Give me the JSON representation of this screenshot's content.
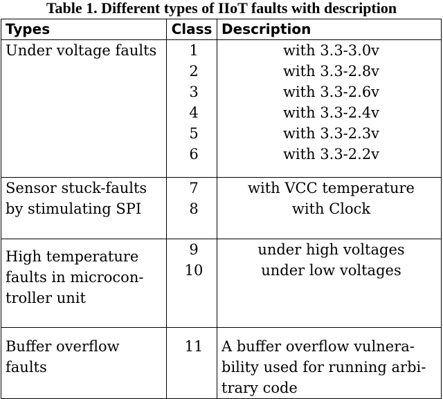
{
  "caption": "Table 1. Different types of IIoT faults with description",
  "headers": {
    "types": "Types",
    "class": "Class",
    "description": "Description"
  },
  "groups": [
    {
      "type_lines": [
        "Under voltage faults"
      ],
      "classes": [
        "1",
        "2",
        "3",
        "4",
        "5",
        "6"
      ],
      "descriptions": [
        "with 3.3-3.0v",
        "with 3.3-2.8v",
        "with 3.3-2.6v",
        "with 3.3-2.4v",
        "with 3.3-2.3v",
        "with 3.3-2.2v"
      ]
    },
    {
      "type_lines": [
        "Sensor stuck-faults",
        "by stimulating SPI"
      ],
      "classes": [
        "7",
        "8"
      ],
      "descriptions": [
        "with VCC temperature",
        "with Clock"
      ]
    },
    {
      "type_lines": [
        "High temperature",
        "faults in microcon-",
        "troller unit"
      ],
      "classes": [
        "9",
        "10"
      ],
      "descriptions": [
        "under high voltages",
        "under low voltages"
      ]
    },
    {
      "type_lines": [
        "Buffer overflow",
        "faults"
      ],
      "classes": [
        "11"
      ],
      "descriptions": [
        "A buffer overflow vulnera-",
        "bility used for running arbi-",
        "trary code"
      ]
    }
  ]
}
